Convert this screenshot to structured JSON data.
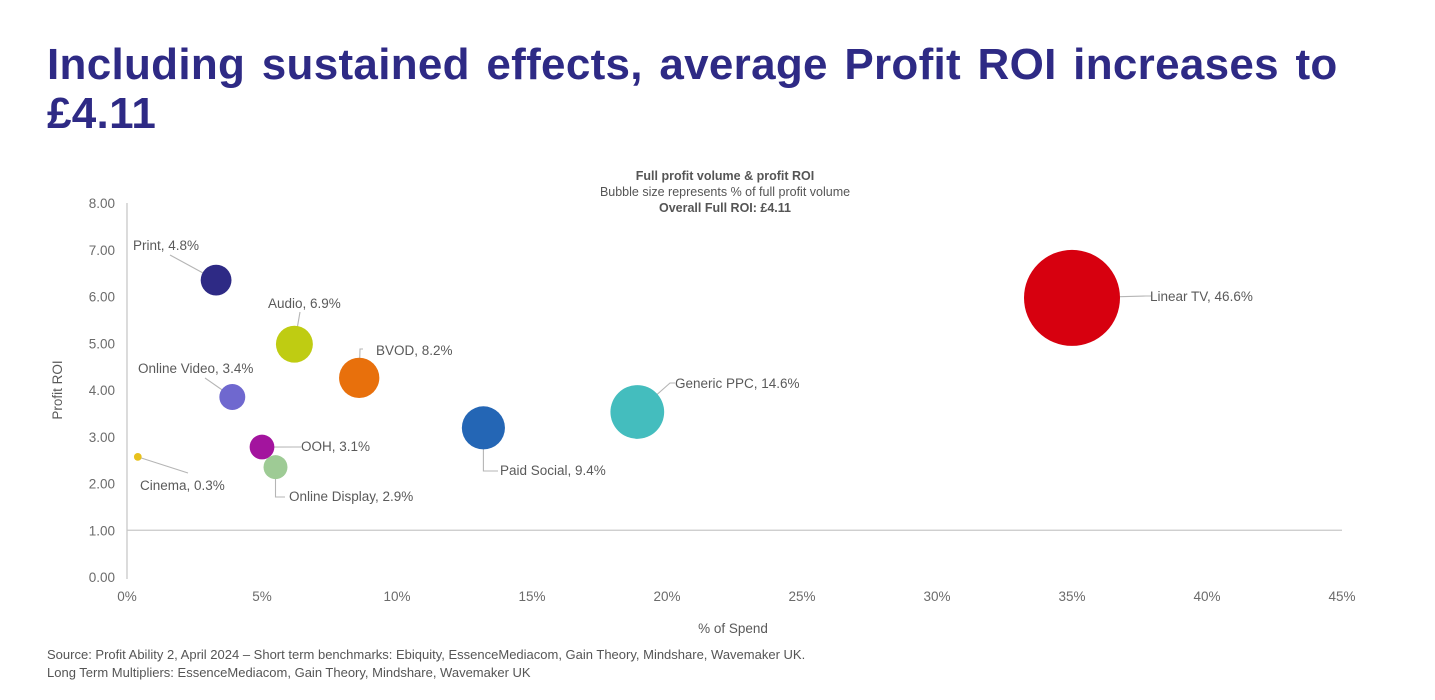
{
  "slide": {
    "title": "Including sustained effects, average Profit ROI increases to £4.11",
    "source_line1": "Source: Profit Ability 2, April 2024 – Short term benchmarks: Ebiquity, EssenceMediacom, Gain Theory, Mindshare, Wavemaker UK.",
    "source_line2": "Long Term Multipliers: EssenceMediacom, Gain Theory, Mindshare, Wavemaker UK"
  },
  "chart_data": {
    "type": "scatter",
    "subtype": "bubble",
    "title": "Full profit volume & profit ROI",
    "subtitle": "Bubble size represents % of full profit volume",
    "annotation": "Overall Full ROI: £4.11",
    "xlabel": "% of Spend",
    "ylabel": "Profit ROI",
    "xlim": [
      0,
      45
    ],
    "ylim": [
      0,
      8
    ],
    "x_ticks": [
      "0%",
      "5%",
      "10%",
      "15%",
      "20%",
      "25%",
      "30%",
      "35%",
      "40%",
      "45%"
    ],
    "x_tick_values": [
      0,
      5,
      10,
      15,
      20,
      25,
      30,
      35,
      40,
      45
    ],
    "y_ticks": [
      "0.00",
      "1.00",
      "2.00",
      "3.00",
      "4.00",
      "5.00",
      "6.00",
      "7.00",
      "8.00"
    ],
    "y_tick_values": [
      0,
      1,
      2,
      3,
      4,
      5,
      6,
      7,
      8
    ],
    "reference_line_y": 1.0,
    "grid": false,
    "legend": "none",
    "series": [
      {
        "name": "Print",
        "x": 3.3,
        "y": 6.35,
        "size_pct": 4.8,
        "label": "Print, 4.8%",
        "color": "#2E2A85",
        "label_pos": "upper-left"
      },
      {
        "name": "Audio",
        "x": 6.2,
        "y": 4.98,
        "size_pct": 6.9,
        "label": "Audio, 6.9%",
        "color": "#BFCC12",
        "label_pos": "upper"
      },
      {
        "name": "BVOD",
        "x": 8.6,
        "y": 4.26,
        "size_pct": 8.2,
        "label": "BVOD, 8.2%",
        "color": "#E8700C",
        "label_pos": "upper-right"
      },
      {
        "name": "Online Video",
        "x": 3.9,
        "y": 3.85,
        "size_pct": 3.4,
        "label": "Online Video, 3.4%",
        "color": "#6F68CF",
        "label_pos": "upper-left"
      },
      {
        "name": "OOH",
        "x": 5.0,
        "y": 2.78,
        "size_pct": 3.1,
        "label": "OOH, 3.1%",
        "color": "#A3149E",
        "label_pos": "right"
      },
      {
        "name": "Online Display",
        "x": 5.5,
        "y": 2.35,
        "size_pct": 2.9,
        "label": "Online Display, 2.9%",
        "color": "#9ECB95",
        "label_pos": "lower-right"
      },
      {
        "name": "Cinema",
        "x": 0.4,
        "y": 2.57,
        "size_pct": 0.3,
        "label": "Cinema, 0.3%",
        "color": "#E8C11C",
        "label_pos": "lower-right"
      },
      {
        "name": "Paid Social",
        "x": 13.2,
        "y": 3.19,
        "size_pct": 9.4,
        "label": "Paid Social, 9.4%",
        "color": "#2466B5",
        "label_pos": "lower-right"
      },
      {
        "name": "Generic PPC",
        "x": 18.9,
        "y": 3.53,
        "size_pct": 14.6,
        "label": "Generic PPC, 14.6%",
        "color": "#44BDBE",
        "label_pos": "upper-right"
      },
      {
        "name": "Linear TV",
        "x": 35.0,
        "y": 5.97,
        "size_pct": 46.6,
        "label": "Linear TV, 46.6%",
        "color": "#D7000F",
        "label_pos": "right"
      }
    ]
  }
}
